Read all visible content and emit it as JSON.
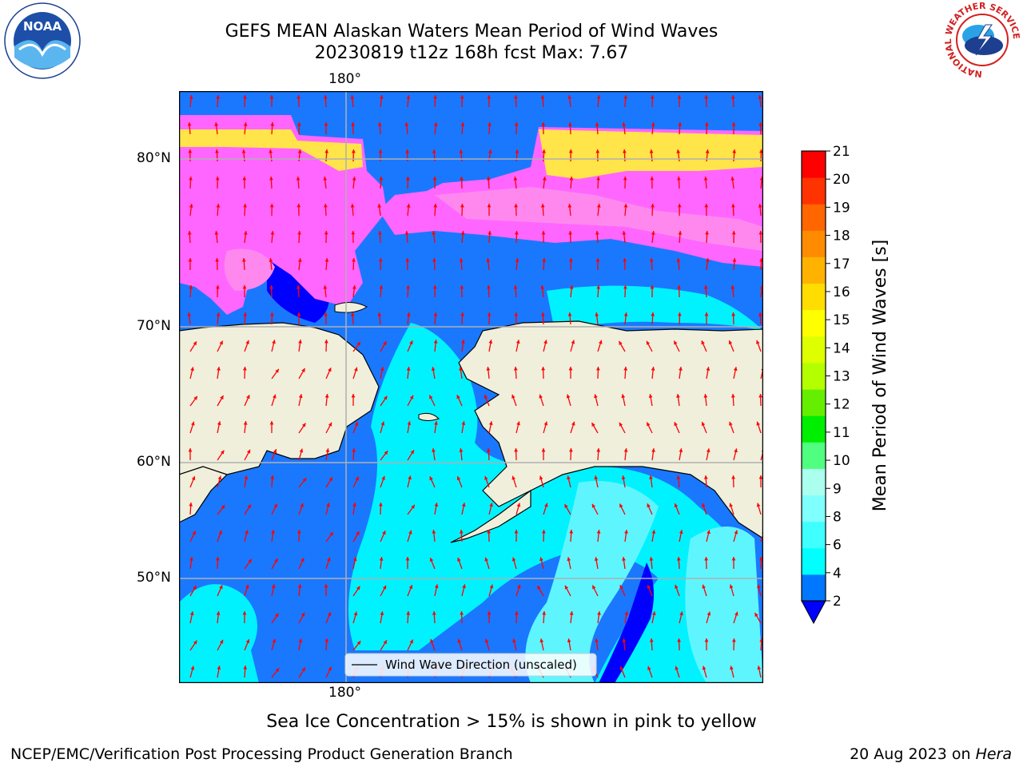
{
  "title": {
    "line1": "GEFS MEAN Alaskan Waters Mean Period of Wind Waves",
    "line2": "20230819 t12z 168h fcst   Max: 7.67"
  },
  "axes": {
    "top_lon_label": "180°",
    "bottom_lon_label": "180°",
    "lat_labels": [
      "80°N",
      "70°N",
      "60°N",
      "50°N"
    ]
  },
  "legend": {
    "label": "Wind Wave Direction (unscaled)"
  },
  "colorbar": {
    "label": "Mean Period of Wind Waves [s]",
    "ticks": [
      "2",
      "4",
      "6",
      "8",
      "9",
      "10",
      "11",
      "12",
      "13",
      "14",
      "15",
      "16",
      "17",
      "18",
      "19",
      "20",
      "21"
    ],
    "colors": [
      "#0077ff",
      "#00ffff",
      "#40ffff",
      "#80ffff",
      "#aaffee",
      "#50ff80",
      "#00ee00",
      "#66ee00",
      "#b3ff00",
      "#ddff00",
      "#ffff00",
      "#ffdd00",
      "#ffb300",
      "#ff8c00",
      "#ff6600",
      "#ff3300",
      "#ff0000"
    ],
    "under_color": "#0000ff"
  },
  "map_colors": {
    "land": "#efefdc",
    "ocean_base": "#1a78ff",
    "ocean_light": "#00f2ff",
    "ocean_pale": "#5ff5ff",
    "ocean_deep": "#0000ff",
    "ice_pink": "#ff66ff",
    "ice_light": "#ff88ee",
    "ice_yellow": "#ffe44a",
    "arrow": "#ff0000",
    "grid": "#b0b0b0"
  },
  "footer": {
    "note": "Sea Ice Concentration > 15% is shown in pink to yellow",
    "credit": "NCEP/EMC/Verification Post Processing Product Generation Branch",
    "date_prefix": "20 Aug 2023 on ",
    "date_machine": "Hera"
  },
  "logos": {
    "noaa": "NOAA",
    "nws_ring": "NATIONAL WEATHER SERVICE"
  }
}
